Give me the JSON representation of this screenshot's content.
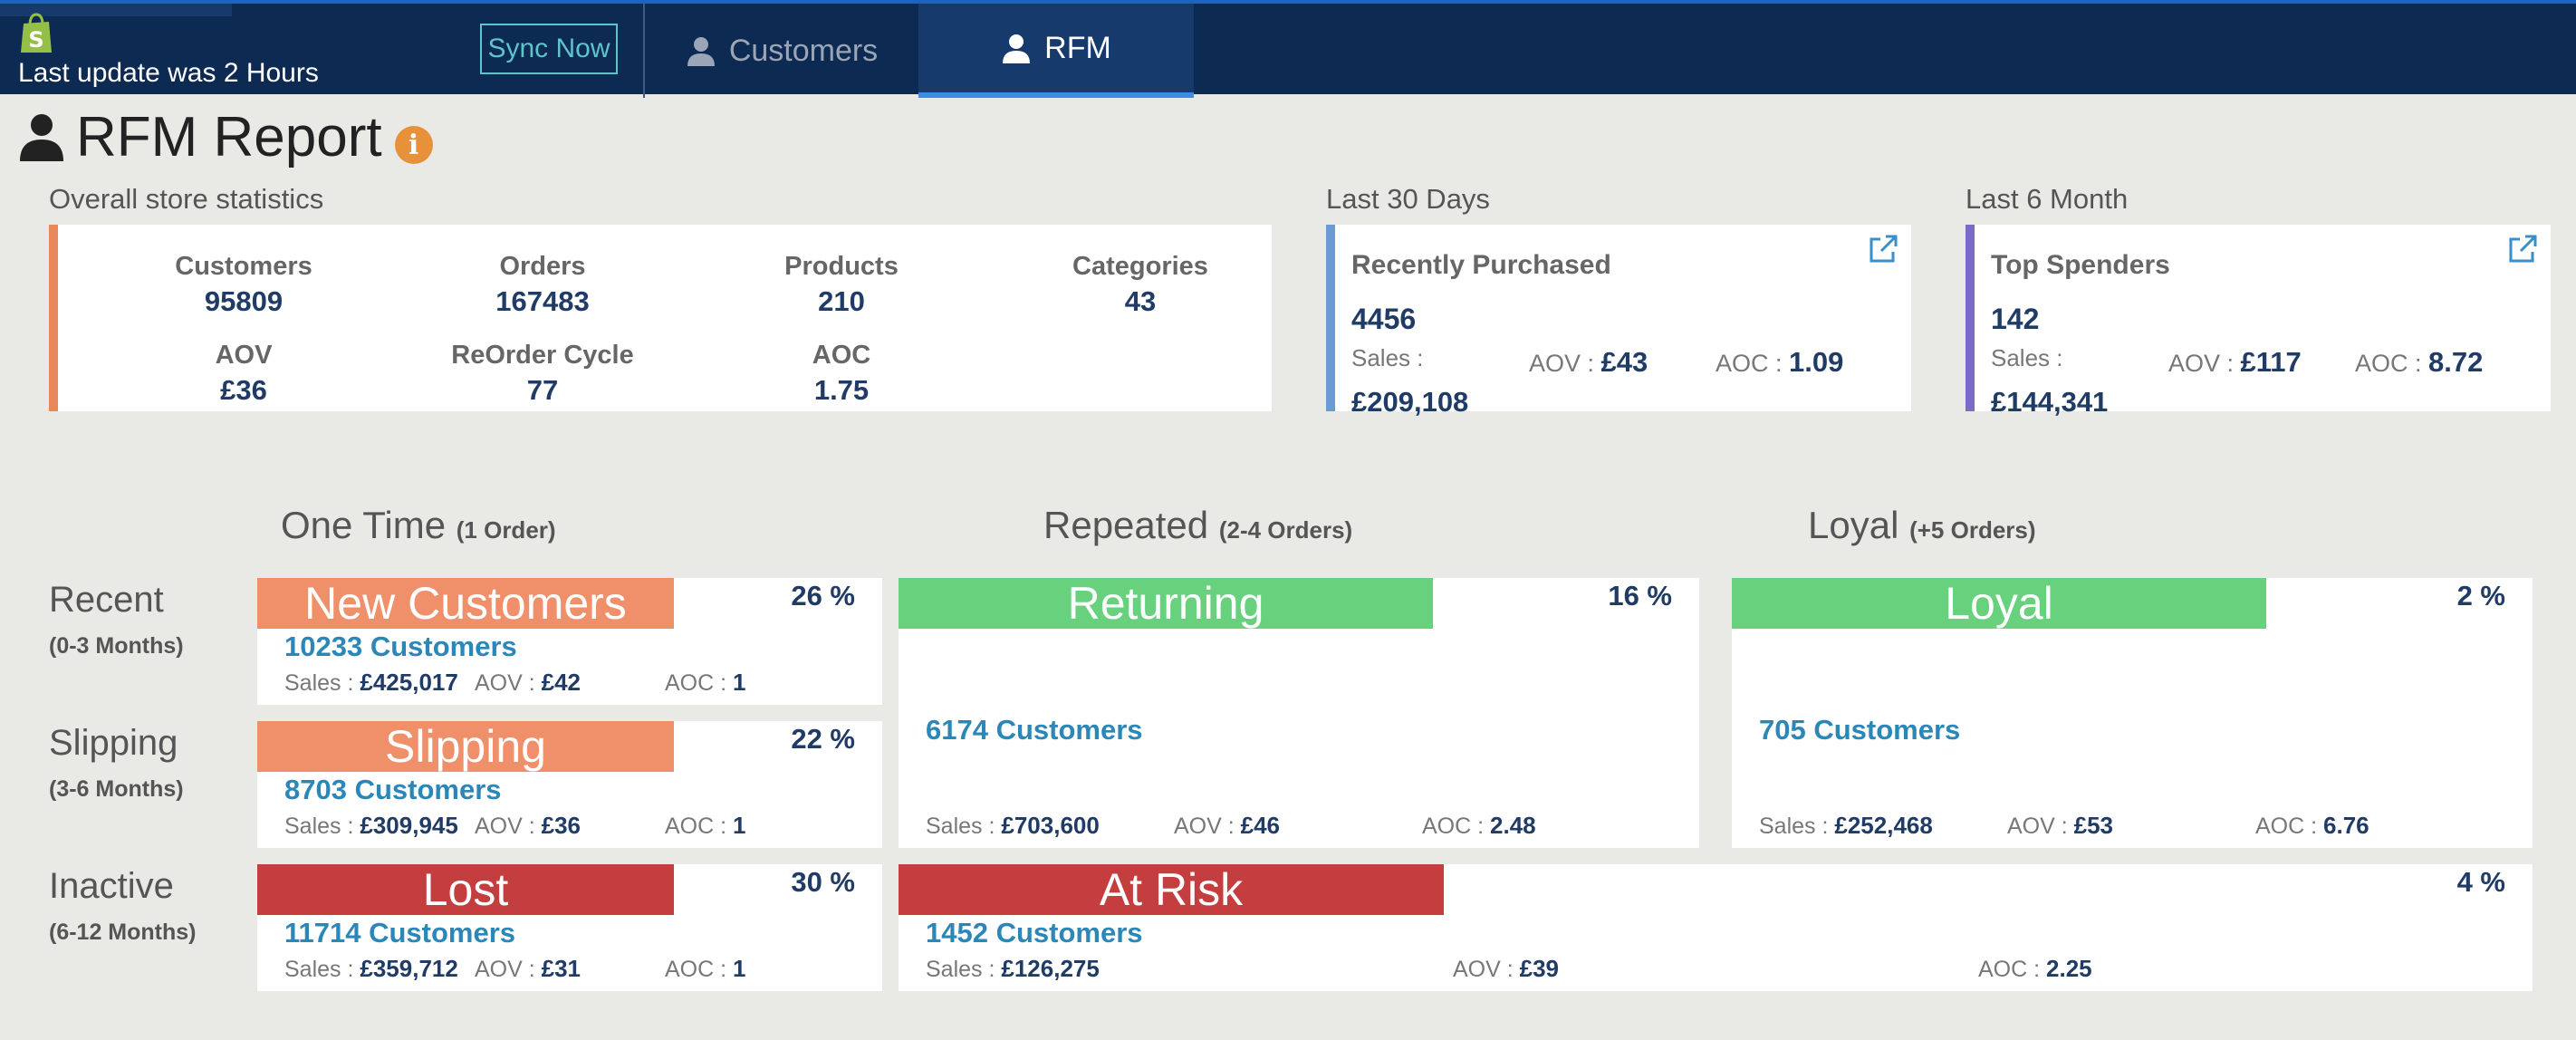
{
  "header": {
    "last_update": "Last update was 2 Hours",
    "sync_label": "Sync Now",
    "tabs": [
      {
        "label": "Customers",
        "icon": "user-icon",
        "active": false
      },
      {
        "label": "RFM",
        "icon": "user-icon",
        "active": true
      }
    ]
  },
  "page": {
    "title": "RFM Report"
  },
  "overall": {
    "label": "Overall store statistics",
    "stats": [
      {
        "label": "Customers",
        "value": "95809"
      },
      {
        "label": "Orders",
        "value": "167483"
      },
      {
        "label": "Products",
        "value": "210"
      },
      {
        "label": "Categories",
        "value": "43"
      },
      {
        "label": "AOV",
        "value": "£36"
      },
      {
        "label": "ReOrder Cycle",
        "value": "77"
      },
      {
        "label": "AOC",
        "value": "1.75"
      }
    ]
  },
  "last30": {
    "label": "Last 30 Days",
    "title": "Recently Purchased",
    "count": "4456",
    "sales_label": "Sales :",
    "sales": "£209,108",
    "aov_label": "AOV : ",
    "aov": "£43",
    "aoc_label": "AOC : ",
    "aoc": "1.09"
  },
  "last6m": {
    "label": "Last 6 Month",
    "title": "Top Spenders",
    "count": "142",
    "sales_label": "Sales :",
    "sales": "£144,341",
    "aov_label": "AOV : ",
    "aov": "£117",
    "aoc_label": "AOC : ",
    "aoc": "8.72"
  },
  "columns": [
    {
      "title": "One Time",
      "sub": "(1 Order)"
    },
    {
      "title": "Repeated",
      "sub": "(2-4 Orders)"
    },
    {
      "title": "Loyal",
      "sub": "(+5 Orders)"
    }
  ],
  "rows": [
    {
      "title": "Recent",
      "sub": "(0-3 Months)"
    },
    {
      "title": "Slipping",
      "sub": "(3-6 Months)"
    },
    {
      "title": "Inactive",
      "sub": "(6-12 Months)"
    }
  ],
  "labels": {
    "sales": "Sales : ",
    "aov": "AOV : ",
    "aoc": "AOC : "
  },
  "segments": {
    "new_customers": {
      "name": "New Customers",
      "pct": "26 %",
      "customers": "10233 Customers",
      "sales": "£425,017",
      "aov": "£42",
      "aoc": "1",
      "color": "#f0906a"
    },
    "slipping": {
      "name": "Slipping",
      "pct": "22 %",
      "customers": "8703 Customers",
      "sales": "£309,945",
      "aov": "£36",
      "aoc": "1",
      "color": "#f0906a"
    },
    "lost": {
      "name": "Lost",
      "pct": "30 %",
      "customers": "11714 Customers",
      "sales": "£359,712",
      "aov": "£31",
      "aoc": "1",
      "color": "#c43d3f"
    },
    "returning": {
      "name": "Returning",
      "pct": "16 %",
      "customers": "6174 Customers",
      "sales": "£703,600",
      "aov": "£46",
      "aoc": "2.48",
      "color": "#67d17e"
    },
    "loyal": {
      "name": "Loyal",
      "pct": "2 %",
      "customers": "705 Customers",
      "sales": "£252,468",
      "aov": "£53",
      "aoc": "6.76",
      "color": "#67d17e"
    },
    "at_risk": {
      "name": "At Risk",
      "pct": "4 %",
      "customers": "1452 Customers",
      "sales": "£126,275",
      "aov": "£39",
      "aoc": "2.25",
      "color": "#c43d3f"
    }
  }
}
